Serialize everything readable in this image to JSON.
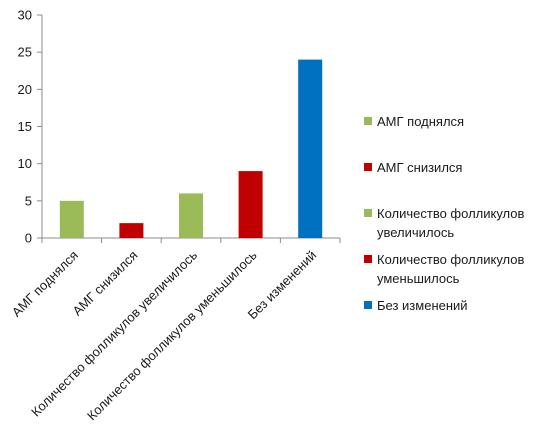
{
  "chart_data": {
    "type": "bar",
    "title": "",
    "xlabel": "",
    "ylabel": "",
    "categories": [
      "АМГ поднялся",
      "АМГ снизился",
      "Количество фолликулов увеличилось",
      "Количество фолликулов уменьшилось",
      "Без изменений"
    ],
    "values": [
      5,
      2,
      6,
      9,
      24
    ],
    "colors": [
      "#9bbb59",
      "#c00000",
      "#9bbb59",
      "#c00000",
      "#0070c0"
    ],
    "ylim": [
      0,
      30
    ],
    "yticks": [
      0,
      5,
      10,
      15,
      20,
      25,
      30
    ],
    "grid": false,
    "legend_position": "right",
    "legend": [
      {
        "lines": [
          "АМГ поднялся"
        ],
        "color": "#9bbb59"
      },
      {
        "lines": [
          "АМГ снизился"
        ],
        "color": "#c00000"
      },
      {
        "lines": [
          "Количество фолликулов",
          "увеличилось"
        ],
        "color": "#9bbb59"
      },
      {
        "lines": [
          "Количество фолликулов",
          "уменьшилось"
        ],
        "color": "#c00000"
      },
      {
        "lines": [
          "Без изменений"
        ],
        "color": "#0070c0"
      }
    ]
  }
}
